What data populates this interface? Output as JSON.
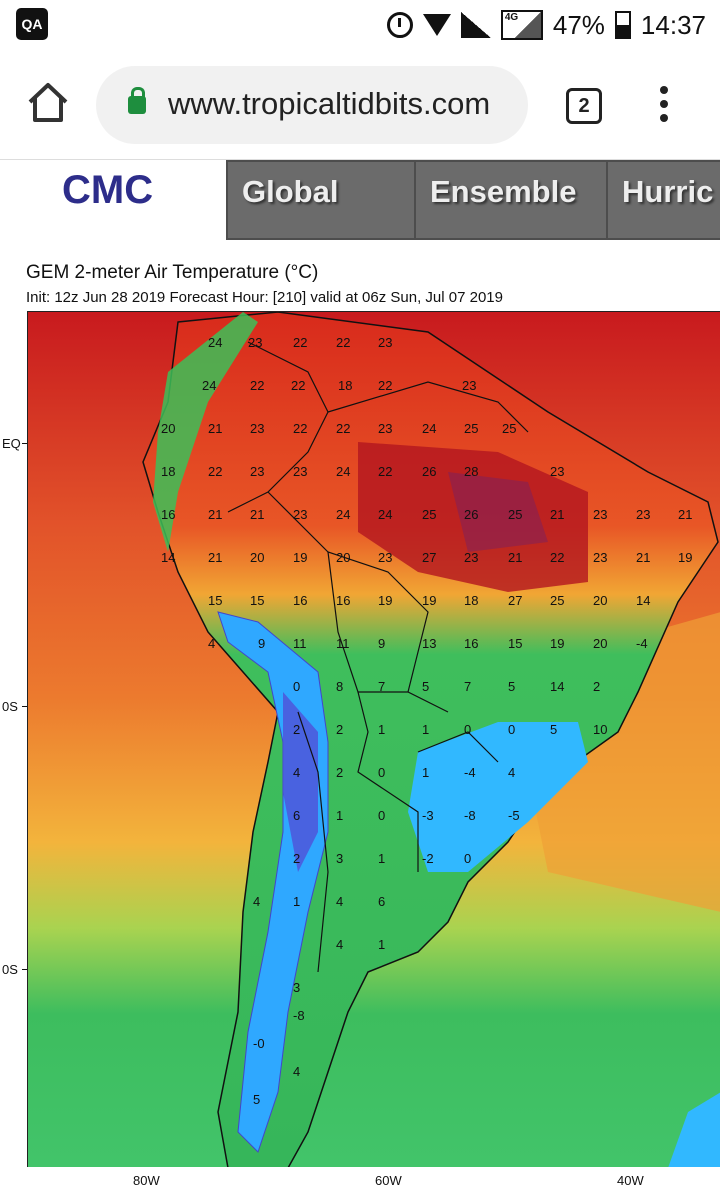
{
  "status_bar": {
    "left_icon": "QA",
    "battery_percent": "47%",
    "time": "14:37",
    "icons": [
      "alarm-icon",
      "wifi-icon",
      "signal-icon",
      "4g-icon",
      "battery-icon"
    ]
  },
  "browser": {
    "url": "www.tropicaltidbits.com",
    "tab_count": "2",
    "icons": [
      "home-icon",
      "lock-icon",
      "tabs-icon",
      "menu-icon"
    ]
  },
  "site_nav": {
    "brand": "CMC",
    "tabs": [
      {
        "label": "Global"
      },
      {
        "label": "Ensemble"
      },
      {
        "label": "Hurric"
      }
    ]
  },
  "map": {
    "title": "GEM 2-meter Air Temperature (°C)",
    "subtitle": "Init: 12z Jun 28 2019   Forecast Hour: [210]   valid at 06z Sun, Jul 07 2019",
    "lat_labels": [
      "EQ",
      "0S",
      "0S"
    ],
    "lon_labels": [
      "80W",
      "60W",
      "40W"
    ],
    "temperature_labels": [
      "24",
      "23",
      "22",
      "22",
      "23",
      "24",
      "22",
      "22",
      "18",
      "22",
      "23",
      "20",
      "21",
      "23",
      "22",
      "22",
      "23",
      "24",
      "25",
      "25",
      "18",
      "22",
      "23",
      "23",
      "24",
      "22",
      "26",
      "28",
      "23",
      "16",
      "21",
      "21",
      "23",
      "24",
      "24",
      "25",
      "26",
      "25",
      "21",
      "23",
      "23",
      "21",
      "14",
      "21",
      "20",
      "19",
      "20",
      "23",
      "27",
      "23",
      "21",
      "22",
      "23",
      "21",
      "19",
      "15",
      "15",
      "16",
      "16",
      "19",
      "19",
      "18",
      "27",
      "25",
      "20",
      "14",
      "4",
      "9",
      "11",
      "11",
      "9",
      "13",
      "16",
      "15",
      "19",
      "20",
      "-4",
      "0",
      "8",
      "7",
      "5",
      "7",
      "5",
      "14",
      "2",
      "2",
      "2",
      "1",
      "1",
      "0",
      "0",
      "5",
      "10",
      "4",
      "2",
      "0",
      "1",
      "-4",
      "4",
      "6",
      "1",
      "0",
      "-3",
      "-8",
      "-5",
      "2",
      "3",
      "1",
      "-2",
      "0",
      "4",
      "1",
      "4",
      "6",
      "4",
      "1",
      "3",
      "-8",
      "-0",
      "4",
      "5"
    ]
  },
  "colors": {
    "hot": "#b8141e",
    "warm": "#e8612a",
    "mild": "#f0c040",
    "cool": "#3db85a",
    "cold": "#2fb0ff",
    "coldest": "#3a4fd0",
    "nav_bg": "#6b6b6b",
    "brand": "#2d2d8a"
  }
}
